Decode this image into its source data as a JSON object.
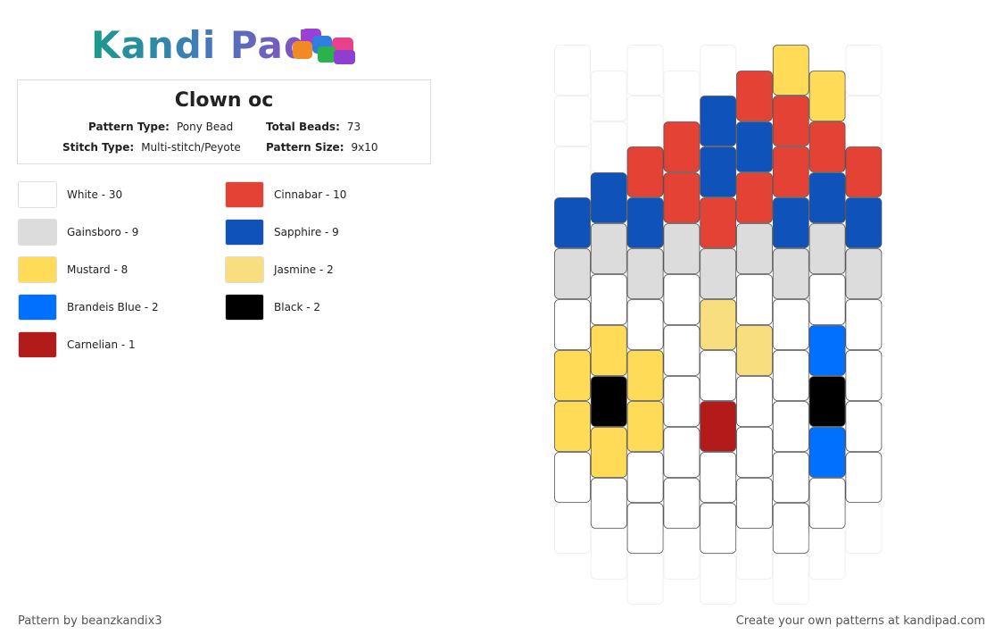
{
  "header": {
    "logo": "Kandi Pad"
  },
  "pattern": {
    "title": "Clown oc",
    "info": [
      {
        "label": "Pattern Type:",
        "value": "Pony Bead"
      },
      {
        "label": "Total Beads:",
        "value": "73"
      },
      {
        "label": "Stitch Type:",
        "value": "Multi-stitch/Peyote"
      },
      {
        "label": "Pattern Size:",
        "value": "9x10"
      }
    ]
  },
  "legend": [
    {
      "label": "White - 30",
      "color": "#ffffff"
    },
    {
      "label": "Gainsboro - 9",
      "color": "#dcdcdc"
    },
    {
      "label": "Mustard - 8",
      "color": "#ffdb58"
    },
    {
      "label": "Brandeis Blue - 2",
      "color": "#0070ff"
    },
    {
      "label": "Carnelian - 1",
      "color": "#b31b1b"
    },
    {
      "label": "Cinnabar - 10",
      "color": "#e34234"
    },
    {
      "label": "Sapphire - 9",
      "color": "#0f52ba"
    },
    {
      "label": "Jasmine - 2",
      "color": "#f8de7e"
    },
    {
      "label": "Black - 2",
      "color": "#000000"
    }
  ],
  "footer": {
    "left": "Pattern by beanzkandix3",
    "right": "Create your own patterns at kandipad.com"
  }
}
